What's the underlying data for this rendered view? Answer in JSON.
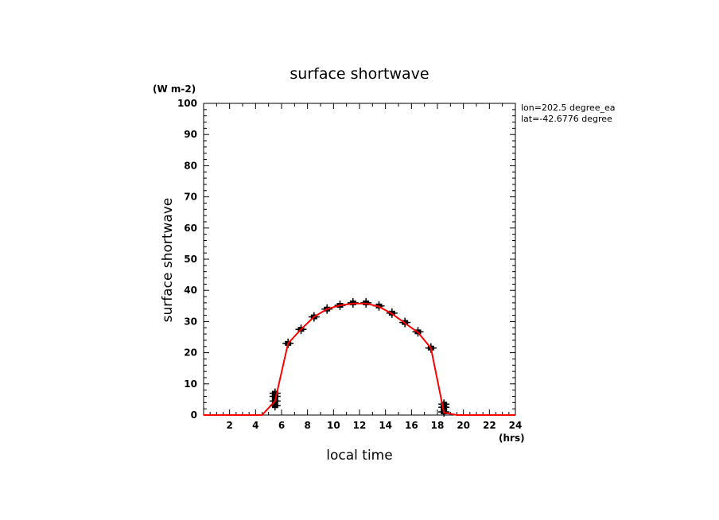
{
  "chart_data": {
    "type": "line",
    "title": "surface shortwave",
    "xlabel": "local time",
    "ylabel": "surface shortwave",
    "x_unit": "(hrs)",
    "y_unit": "(W m-2)",
    "xlim": [
      0,
      24
    ],
    "ylim": [
      0,
      100
    ],
    "x_ticks": [
      2,
      4,
      6,
      8,
      10,
      12,
      14,
      16,
      18,
      20,
      22,
      24
    ],
    "y_ticks": [
      0,
      10,
      20,
      30,
      40,
      50,
      60,
      70,
      80,
      90,
      100
    ],
    "grid": false,
    "annotations": [
      "lon=202.5 degree_ea",
      "lat=-42.6776 degree"
    ],
    "series": [
      {
        "color": "#ff0000",
        "x": [
          0,
          1,
          2,
          3,
          4,
          4.5,
          5.5,
          6.5,
          7.5,
          8.5,
          9.5,
          10.5,
          11.5,
          12.5,
          13.5,
          14.5,
          15.5,
          16.5,
          17.5,
          18.5,
          19.5,
          20.5,
          21.5,
          22.5,
          23.5,
          24
        ],
        "y": [
          0,
          0,
          0,
          0,
          0,
          0,
          4.5,
          23,
          27.5,
          31.5,
          34,
          35.2,
          35.8,
          35.8,
          34.8,
          32.5,
          29.5,
          26.5,
          21.5,
          0.8,
          0,
          0,
          0,
          0,
          0,
          0
        ]
      }
    ],
    "scatter_points": [
      {
        "x": 5.5,
        "y": 3
      },
      {
        "x": 5.5,
        "y": 4.5
      },
      {
        "x": 5.5,
        "y": 6
      },
      {
        "x": 5.5,
        "y": 7
      },
      {
        "x": 6.5,
        "y": 23
      },
      {
        "x": 7.5,
        "y": 27.5
      },
      {
        "x": 8.5,
        "y": 31.5
      },
      {
        "x": 9.5,
        "y": 34
      },
      {
        "x": 10.5,
        "y": 35.2
      },
      {
        "x": 11.5,
        "y": 36
      },
      {
        "x": 12.5,
        "y": 36
      },
      {
        "x": 13.5,
        "y": 35
      },
      {
        "x": 14.5,
        "y": 32.7
      },
      {
        "x": 15.5,
        "y": 29.7
      },
      {
        "x": 16.5,
        "y": 26.7
      },
      {
        "x": 17.5,
        "y": 21.5
      },
      {
        "x": 18.5,
        "y": 1
      },
      {
        "x": 18.5,
        "y": 2.5
      },
      {
        "x": 18.5,
        "y": 3.5
      }
    ]
  }
}
